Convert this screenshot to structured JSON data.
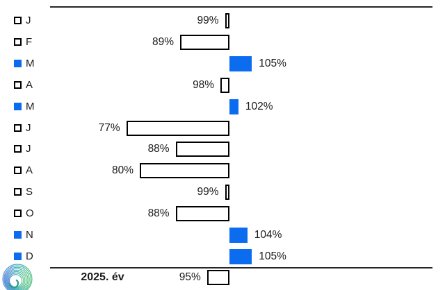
{
  "chart_data": {
    "type": "bar",
    "orientation": "horizontal-deviation",
    "baseline_value": 100,
    "unit": "%",
    "grid": false,
    "categories": [
      "J",
      "F",
      "M",
      "A",
      "M",
      "J",
      "J",
      "A",
      "S",
      "O",
      "N",
      "D"
    ],
    "values": [
      99,
      89,
      105,
      98,
      102,
      77,
      88,
      80,
      99,
      88,
      104,
      105
    ],
    "value_labels": [
      "99%",
      "89%",
      "105%",
      "98%",
      "102%",
      "77%",
      "88%",
      "80%",
      "99%",
      "88%",
      "104%",
      "105%"
    ],
    "summary": {
      "label": "2025. év",
      "value": 95,
      "value_label": "95%"
    },
    "colors": {
      "above_baseline_fill": "#0c6cf0",
      "below_baseline_fill": "#ffffff",
      "bar_border": "#000000",
      "axis_line": "#262626",
      "text": "#1a1a1a"
    }
  },
  "logo": {
    "icon": "swirl-spiral-logo",
    "colors": [
      "#5b8fd8",
      "#3fb0b8",
      "#5ec487",
      "#2f9e8f"
    ]
  }
}
